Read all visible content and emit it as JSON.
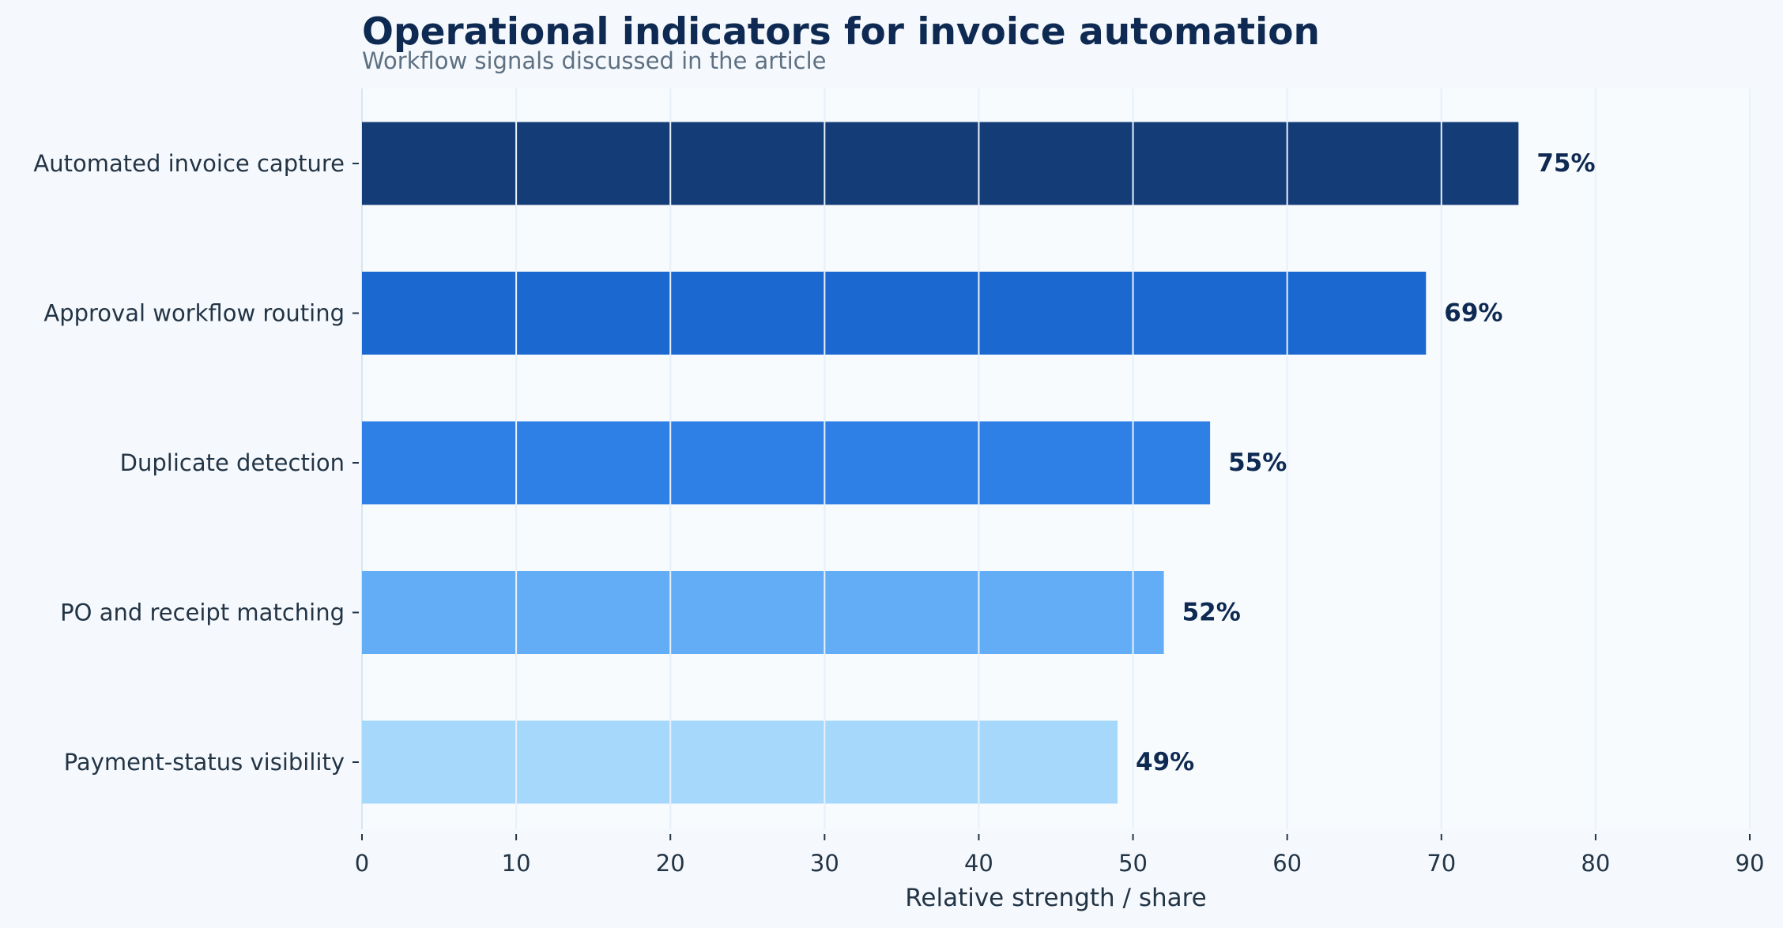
{
  "chart_data": {
    "type": "bar",
    "orientation": "horizontal",
    "title": "Operational indicators for invoice automation",
    "subtitle": "Workflow signals discussed in the article",
    "xlabel": "Relative strength / share",
    "ylabel": "",
    "xlim": [
      0,
      90
    ],
    "xticks": [
      0,
      10,
      20,
      30,
      40,
      50,
      60,
      70,
      80,
      90
    ],
    "grid": "vertical",
    "value_suffix": "%",
    "categories": [
      "Automated invoice capture",
      "Approval workflow routing",
      "Duplicate detection",
      "PO and receipt matching",
      "Payment-status visibility"
    ],
    "values": [
      75,
      69,
      55,
      52,
      49
    ],
    "bar_colors": [
      "#143d78",
      "#1b68d0",
      "#2f80e6",
      "#63adf6",
      "#a6d8fc"
    ]
  },
  "colors": {
    "background": "#f5f9fd",
    "plot_background": "#f7fbfe",
    "title": "#0e2a52",
    "subtitle": "#5e7082",
    "text": "#233445",
    "value_label": "#0e2a52",
    "gridline": "#d5e6ee",
    "gridline_over_bar": "#e9f1fb"
  }
}
